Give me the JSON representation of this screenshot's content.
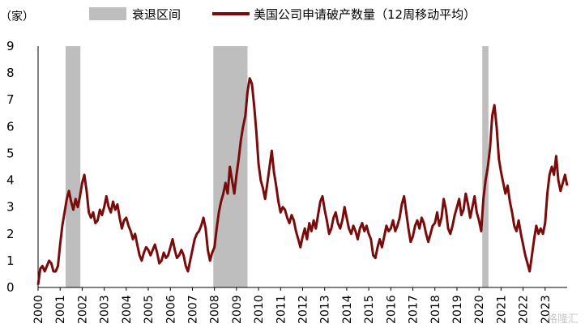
{
  "chart_data": {
    "type": "line",
    "ylabel": "（家）",
    "ylim": [
      0,
      9
    ],
    "yticks": [
      "0",
      "1",
      "2",
      "3",
      "4",
      "5",
      "6",
      "7",
      "8",
      "9"
    ],
    "xlim": [
      2000,
      2024.0
    ],
    "xticks": [
      "2000",
      "2001",
      "2002",
      "2003",
      "2004",
      "2005",
      "2006",
      "2007",
      "2008",
      "2009",
      "2010",
      "2011",
      "2012",
      "2013",
      "2014",
      "2015",
      "2016",
      "2017",
      "2018",
      "2019",
      "2020",
      "2021",
      "2022",
      "2023"
    ],
    "recession_label": "衰退区间",
    "recessions": [
      [
        2001.25,
        2001.92
      ],
      [
        2007.95,
        2009.5
      ],
      [
        2020.15,
        2020.43
      ]
    ],
    "series": [
      {
        "name": "美国公司申请破产数量（12周移动平均）",
        "color": "#7a0b0b",
        "points": [
          [
            2000.0,
            0.1
          ],
          [
            2000.1,
            0.7
          ],
          [
            2000.2,
            0.8
          ],
          [
            2000.3,
            0.6
          ],
          [
            2000.4,
            0.8
          ],
          [
            2000.5,
            1.0
          ],
          [
            2000.6,
            0.9
          ],
          [
            2000.7,
            0.6
          ],
          [
            2000.8,
            0.6
          ],
          [
            2000.9,
            0.8
          ],
          [
            2001.0,
            1.6
          ],
          [
            2001.1,
            2.3
          ],
          [
            2001.2,
            2.8
          ],
          [
            2001.3,
            3.3
          ],
          [
            2001.4,
            3.6
          ],
          [
            2001.5,
            3.2
          ],
          [
            2001.6,
            2.9
          ],
          [
            2001.7,
            3.3
          ],
          [
            2001.8,
            3.0
          ],
          [
            2001.9,
            3.4
          ],
          [
            2002.0,
            3.9
          ],
          [
            2002.1,
            4.2
          ],
          [
            2002.2,
            3.6
          ],
          [
            2002.3,
            2.8
          ],
          [
            2002.4,
            2.6
          ],
          [
            2002.5,
            2.8
          ],
          [
            2002.6,
            2.4
          ],
          [
            2002.7,
            2.5
          ],
          [
            2002.8,
            2.9
          ],
          [
            2002.9,
            2.7
          ],
          [
            2003.0,
            3.0
          ],
          [
            2003.1,
            3.4
          ],
          [
            2003.2,
            3.0
          ],
          [
            2003.3,
            2.8
          ],
          [
            2003.4,
            3.2
          ],
          [
            2003.5,
            2.9
          ],
          [
            2003.6,
            3.1
          ],
          [
            2003.7,
            2.6
          ],
          [
            2003.8,
            2.2
          ],
          [
            2003.9,
            2.5
          ],
          [
            2004.0,
            2.6
          ],
          [
            2004.1,
            2.3
          ],
          [
            2004.2,
            2.1
          ],
          [
            2004.3,
            1.8
          ],
          [
            2004.4,
            2.0
          ],
          [
            2004.5,
            1.6
          ],
          [
            2004.6,
            1.2
          ],
          [
            2004.7,
            1.0
          ],
          [
            2004.8,
            1.3
          ],
          [
            2004.9,
            1.5
          ],
          [
            2005.0,
            1.4
          ],
          [
            2005.1,
            1.2
          ],
          [
            2005.2,
            1.4
          ],
          [
            2005.3,
            1.6
          ],
          [
            2005.4,
            1.3
          ],
          [
            2005.5,
            0.9
          ],
          [
            2005.6,
            1.0
          ],
          [
            2005.7,
            1.3
          ],
          [
            2005.8,
            1.1
          ],
          [
            2005.9,
            1.2
          ],
          [
            2006.0,
            1.5
          ],
          [
            2006.1,
            1.8
          ],
          [
            2006.2,
            1.4
          ],
          [
            2006.3,
            1.1
          ],
          [
            2006.4,
            1.2
          ],
          [
            2006.5,
            1.4
          ],
          [
            2006.6,
            1.2
          ],
          [
            2006.7,
            0.8
          ],
          [
            2006.8,
            0.6
          ],
          [
            2006.9,
            1.0
          ],
          [
            2007.0,
            1.4
          ],
          [
            2007.1,
            1.8
          ],
          [
            2007.2,
            2.0
          ],
          [
            2007.3,
            2.1
          ],
          [
            2007.4,
            2.3
          ],
          [
            2007.5,
            2.6
          ],
          [
            2007.6,
            2.2
          ],
          [
            2007.7,
            1.4
          ],
          [
            2007.8,
            1.0
          ],
          [
            2007.9,
            1.3
          ],
          [
            2008.0,
            1.5
          ],
          [
            2008.1,
            2.2
          ],
          [
            2008.2,
            2.8
          ],
          [
            2008.3,
            3.2
          ],
          [
            2008.4,
            3.5
          ],
          [
            2008.5,
            3.9
          ],
          [
            2008.6,
            3.5
          ],
          [
            2008.7,
            4.5
          ],
          [
            2008.8,
            4.0
          ],
          [
            2008.9,
            3.5
          ],
          [
            2009.0,
            4.2
          ],
          [
            2009.1,
            4.8
          ],
          [
            2009.2,
            5.5
          ],
          [
            2009.3,
            6.0
          ],
          [
            2009.4,
            6.4
          ],
          [
            2009.5,
            7.3
          ],
          [
            2009.6,
            7.8
          ],
          [
            2009.7,
            7.6
          ],
          [
            2009.8,
            6.8
          ],
          [
            2009.9,
            5.8
          ],
          [
            2010.0,
            4.6
          ],
          [
            2010.1,
            4.0
          ],
          [
            2010.2,
            3.7
          ],
          [
            2010.3,
            3.3
          ],
          [
            2010.4,
            3.9
          ],
          [
            2010.5,
            4.5
          ],
          [
            2010.6,
            5.1
          ],
          [
            2010.7,
            4.3
          ],
          [
            2010.8,
            3.8
          ],
          [
            2010.9,
            3.2
          ],
          [
            2011.0,
            2.8
          ],
          [
            2011.1,
            3.0
          ],
          [
            2011.2,
            2.9
          ],
          [
            2011.3,
            2.6
          ],
          [
            2011.4,
            2.4
          ],
          [
            2011.5,
            2.7
          ],
          [
            2011.6,
            2.5
          ],
          [
            2011.7,
            2.1
          ],
          [
            2011.8,
            1.8
          ],
          [
            2011.9,
            1.5
          ],
          [
            2012.0,
            1.9
          ],
          [
            2012.1,
            2.2
          ],
          [
            2012.2,
            1.8
          ],
          [
            2012.3,
            2.4
          ],
          [
            2012.4,
            2.1
          ],
          [
            2012.5,
            2.5
          ],
          [
            2012.6,
            2.2
          ],
          [
            2012.7,
            2.7
          ],
          [
            2012.8,
            3.2
          ],
          [
            2012.9,
            3.4
          ],
          [
            2013.0,
            2.9
          ],
          [
            2013.1,
            2.5
          ],
          [
            2013.2,
            2.0
          ],
          [
            2013.3,
            2.2
          ],
          [
            2013.4,
            2.6
          ],
          [
            2013.5,
            2.8
          ],
          [
            2013.6,
            2.4
          ],
          [
            2013.7,
            2.2
          ],
          [
            2013.8,
            2.5
          ],
          [
            2013.9,
            3.0
          ],
          [
            2014.0,
            2.6
          ],
          [
            2014.1,
            2.2
          ],
          [
            2014.2,
            2.0
          ],
          [
            2014.3,
            2.3
          ],
          [
            2014.4,
            2.1
          ],
          [
            2014.5,
            1.8
          ],
          [
            2014.6,
            2.2
          ],
          [
            2014.7,
            2.4
          ],
          [
            2014.8,
            2.1
          ],
          [
            2014.9,
            2.3
          ],
          [
            2015.0,
            2.0
          ],
          [
            2015.1,
            1.8
          ],
          [
            2015.2,
            1.2
          ],
          [
            2015.3,
            1.1
          ],
          [
            2015.4,
            1.5
          ],
          [
            2015.5,
            1.8
          ],
          [
            2015.6,
            1.5
          ],
          [
            2015.7,
            1.9
          ],
          [
            2015.8,
            2.3
          ],
          [
            2015.9,
            2.1
          ],
          [
            2016.0,
            2.2
          ],
          [
            2016.1,
            2.5
          ],
          [
            2016.2,
            2.1
          ],
          [
            2016.3,
            2.3
          ],
          [
            2016.4,
            2.6
          ],
          [
            2016.5,
            3.1
          ],
          [
            2016.6,
            3.4
          ],
          [
            2016.7,
            2.8
          ],
          [
            2016.8,
            2.2
          ],
          [
            2016.9,
            1.7
          ],
          [
            2017.0,
            1.9
          ],
          [
            2017.1,
            2.3
          ],
          [
            2017.2,
            2.5
          ],
          [
            2017.3,
            2.2
          ],
          [
            2017.4,
            2.6
          ],
          [
            2017.5,
            2.4
          ],
          [
            2017.6,
            2.0
          ],
          [
            2017.7,
            1.7
          ],
          [
            2017.8,
            2.0
          ],
          [
            2017.9,
            2.3
          ],
          [
            2018.0,
            2.4
          ],
          [
            2018.1,
            2.8
          ],
          [
            2018.2,
            2.3
          ],
          [
            2018.3,
            2.6
          ],
          [
            2018.4,
            3.3
          ],
          [
            2018.5,
            2.9
          ],
          [
            2018.6,
            2.2
          ],
          [
            2018.7,
            2.0
          ],
          [
            2018.8,
            2.3
          ],
          [
            2018.9,
            2.7
          ],
          [
            2019.0,
            3.0
          ],
          [
            2019.1,
            3.3
          ],
          [
            2019.2,
            2.7
          ],
          [
            2019.3,
            2.9
          ],
          [
            2019.4,
            3.5
          ],
          [
            2019.5,
            3.1
          ],
          [
            2019.6,
            2.6
          ],
          [
            2019.7,
            3.0
          ],
          [
            2019.8,
            3.4
          ],
          [
            2019.9,
            2.8
          ],
          [
            2020.0,
            2.5
          ],
          [
            2020.1,
            2.1
          ],
          [
            2020.2,
            3.3
          ],
          [
            2020.3,
            4.0
          ],
          [
            2020.4,
            4.5
          ],
          [
            2020.5,
            5.2
          ],
          [
            2020.6,
            6.4
          ],
          [
            2020.7,
            6.8
          ],
          [
            2020.8,
            6.0
          ],
          [
            2020.9,
            4.8
          ],
          [
            2021.0,
            4.3
          ],
          [
            2021.1,
            3.9
          ],
          [
            2021.2,
            3.5
          ],
          [
            2021.3,
            3.8
          ],
          [
            2021.4,
            3.2
          ],
          [
            2021.5,
            2.8
          ],
          [
            2021.6,
            2.3
          ],
          [
            2021.7,
            2.1
          ],
          [
            2021.8,
            2.5
          ],
          [
            2021.9,
            2.0
          ],
          [
            2022.0,
            1.6
          ],
          [
            2022.1,
            1.2
          ],
          [
            2022.2,
            0.9
          ],
          [
            2022.3,
            0.6
          ],
          [
            2022.4,
            1.2
          ],
          [
            2022.5,
            1.8
          ],
          [
            2022.6,
            2.3
          ],
          [
            2022.7,
            2.0
          ],
          [
            2022.8,
            2.2
          ],
          [
            2022.9,
            2.0
          ],
          [
            2023.0,
            2.4
          ],
          [
            2023.1,
            3.5
          ],
          [
            2023.2,
            4.2
          ],
          [
            2023.3,
            4.5
          ],
          [
            2023.4,
            4.2
          ],
          [
            2023.5,
            4.9
          ],
          [
            2023.6,
            4.0
          ],
          [
            2023.7,
            3.6
          ],
          [
            2023.8,
            3.9
          ],
          [
            2023.9,
            4.2
          ],
          [
            2024.0,
            3.8
          ]
        ]
      }
    ]
  },
  "watermark": "格隆汇"
}
